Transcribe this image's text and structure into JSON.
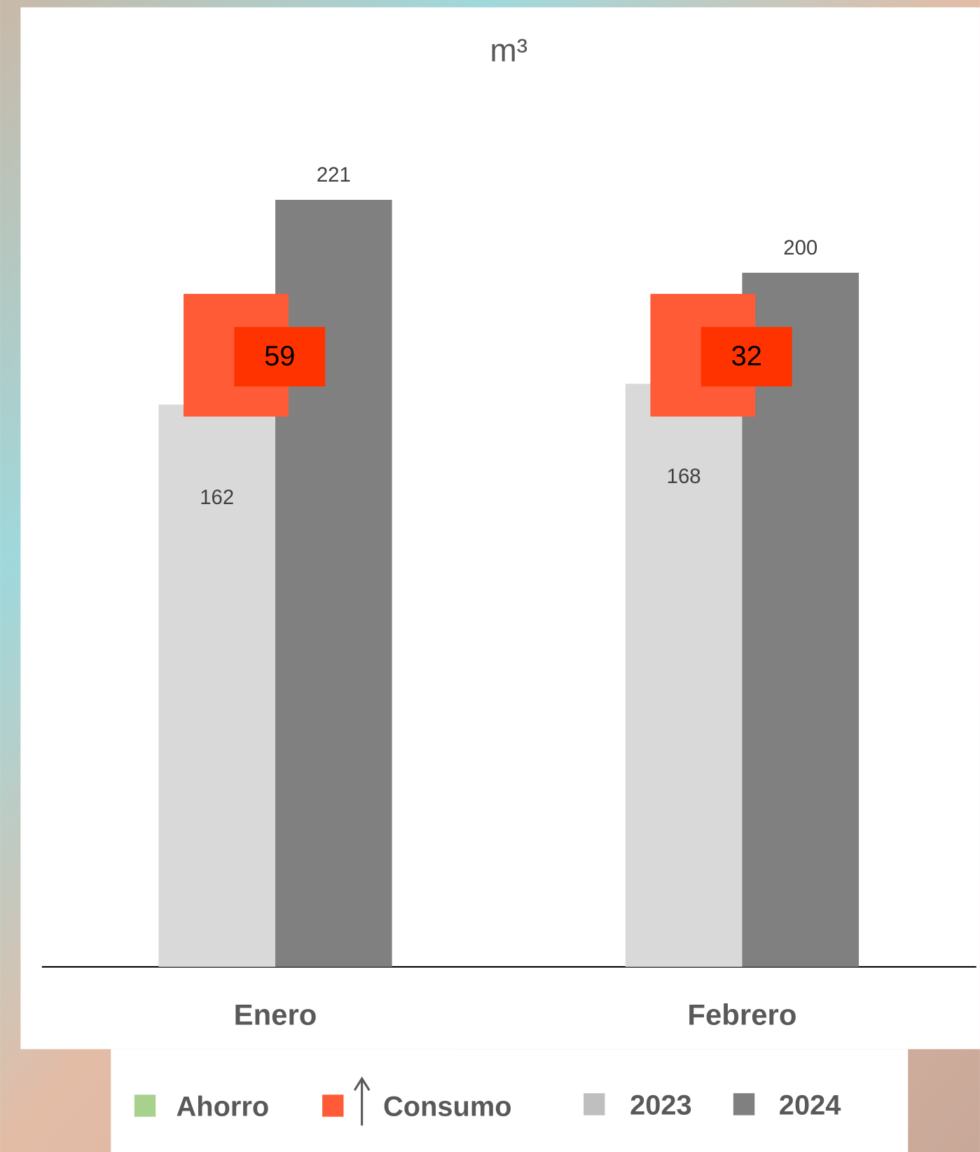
{
  "chart_data": {
    "type": "bar",
    "title": "m³",
    "categories": [
      "Enero",
      "Febrero"
    ],
    "series": [
      {
        "name": "2023",
        "color": "#d9d9d9",
        "values": [
          162,
          168
        ]
      },
      {
        "name": "2024",
        "color": "#808080",
        "values": [
          221,
          200
        ]
      }
    ],
    "ylim": [
      0,
      250
    ],
    "annotations": {
      "name": "Consumo",
      "values": [
        59,
        32
      ]
    },
    "legend": [
      {
        "name": "Ahorro",
        "color": "#a9d18e"
      },
      {
        "name": "Consumo",
        "color": "#ff5b37"
      }
    ],
    "legend_position": "bottom"
  }
}
